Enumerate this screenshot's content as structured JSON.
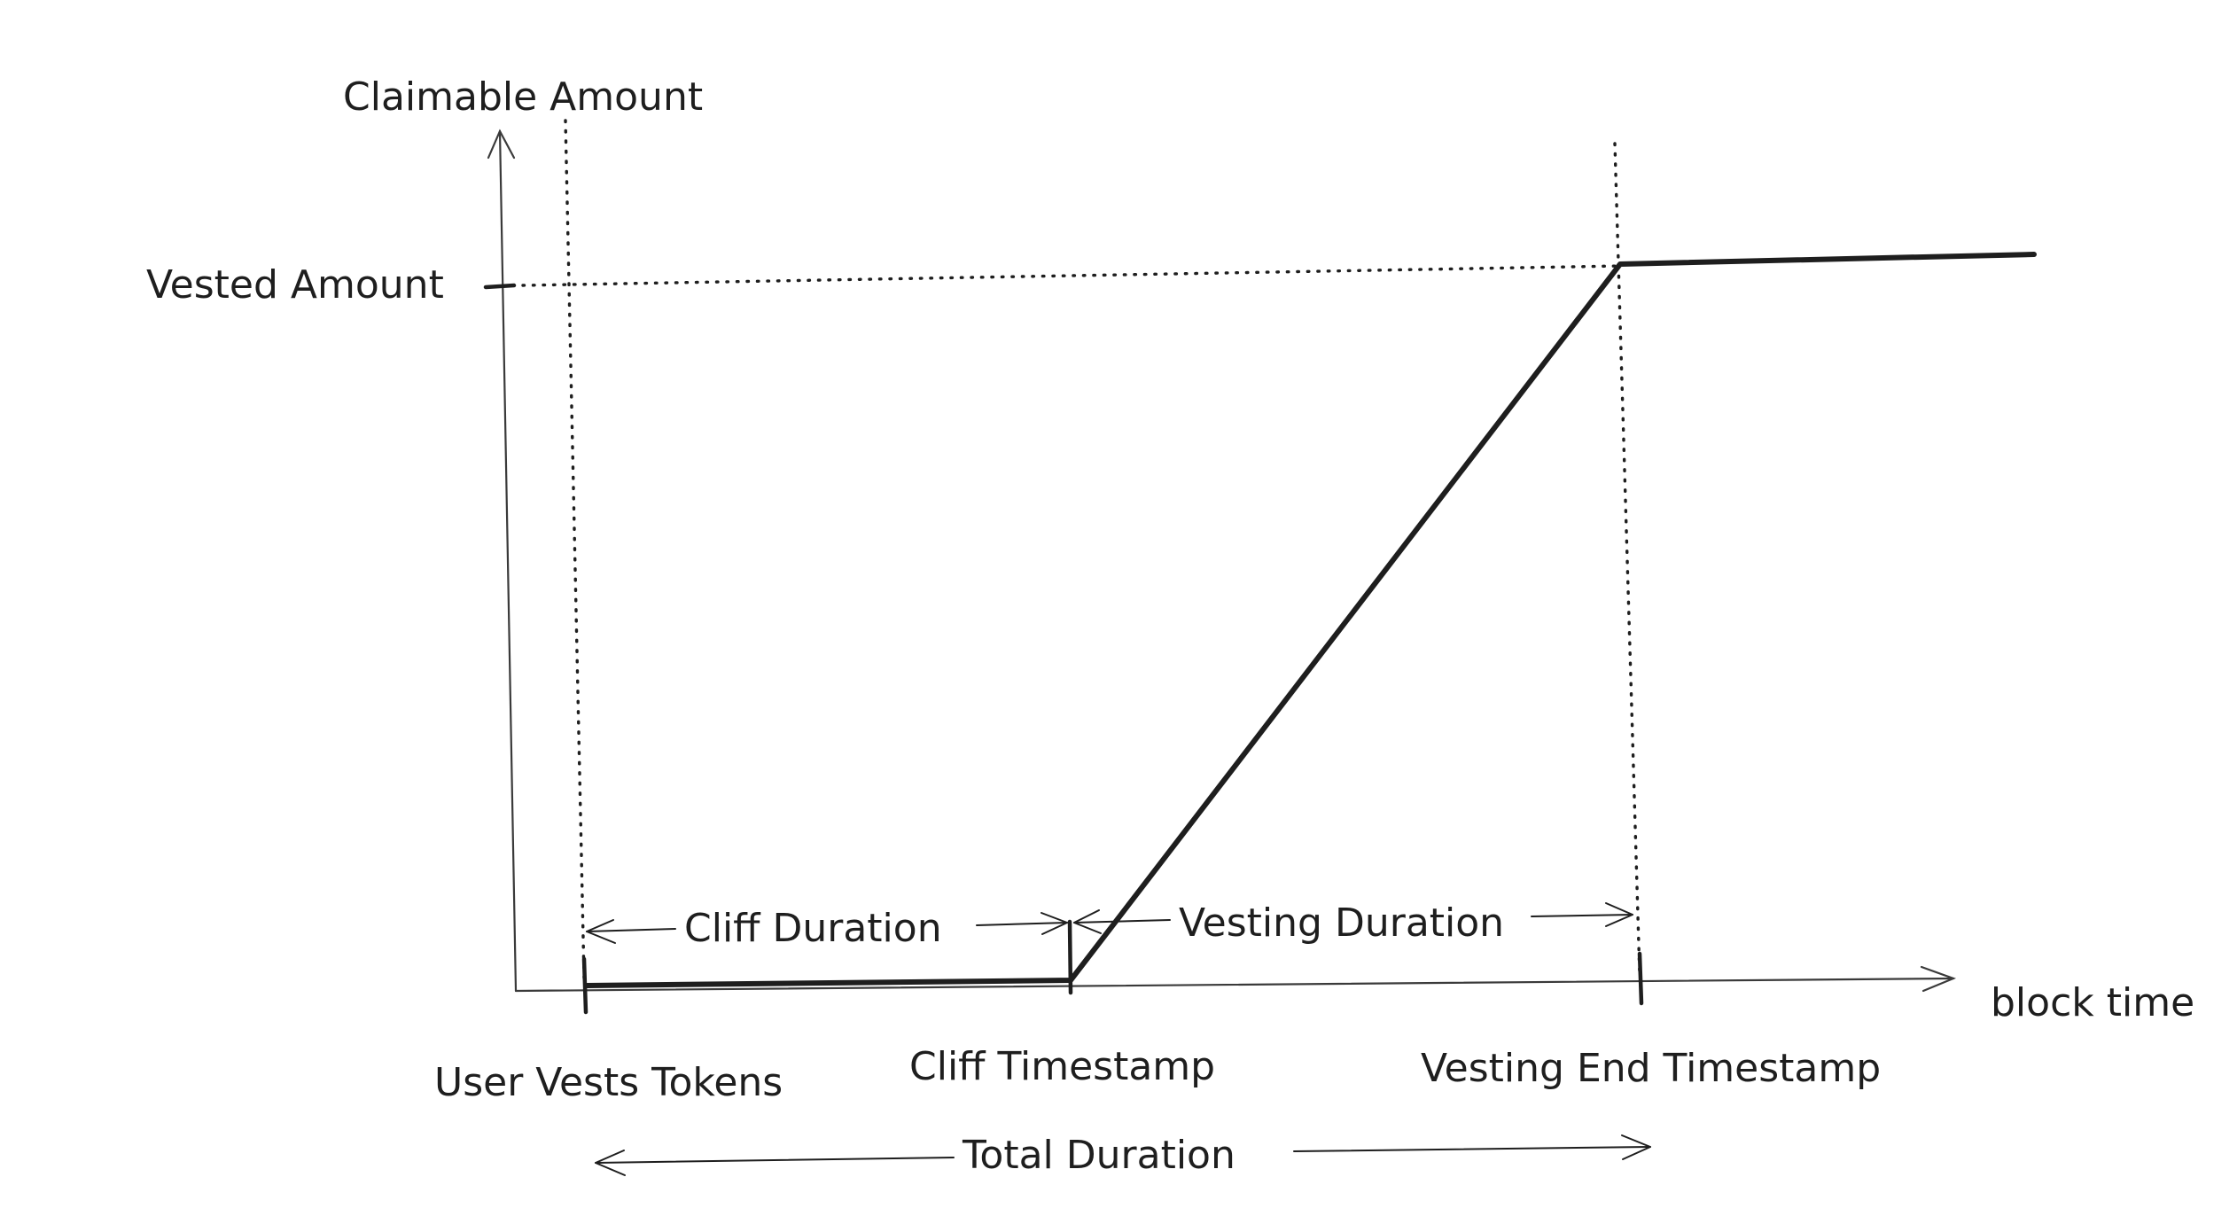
{
  "diagram": {
    "y_axis_label": "Claimable Amount",
    "x_axis_label": "block time",
    "y_tick_label": "Vested Amount",
    "x_tick_labels": {
      "start": "User Vests Tokens",
      "cliff": "Cliff Timestamp",
      "end": "Vesting End Timestamp"
    },
    "spans": {
      "cliff": "Cliff Duration",
      "vesting": "Vesting Duration",
      "total": "Total Duration"
    }
  }
}
